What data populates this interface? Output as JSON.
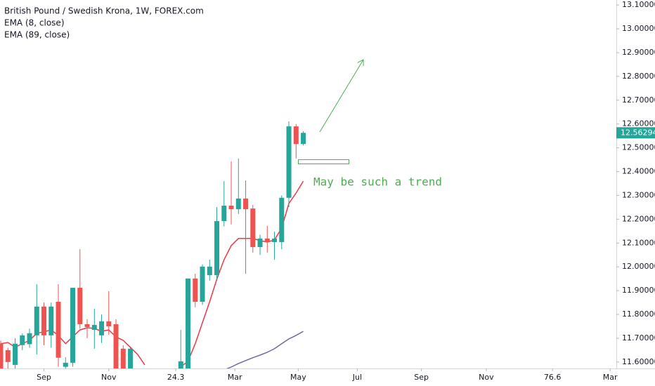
{
  "chart_data": {
    "type": "candlestick",
    "title": "British Pound / Swedish Krona, 1W, FOREX.com",
    "x": [
      0,
      1,
      2,
      3,
      4,
      5,
      6,
      7,
      8,
      9,
      10,
      11,
      12,
      13,
      14,
      15,
      16,
      17,
      18,
      25,
      26,
      27,
      28,
      29,
      30,
      31,
      32,
      33,
      34,
      35,
      36,
      37,
      38,
      39,
      40,
      41,
      42
    ],
    "open": [
      11.677,
      11.65,
      11.588,
      11.671,
      11.675,
      11.712,
      11.833,
      11.712,
      11.853,
      11.58,
      11.597,
      11.912,
      11.759,
      11.735,
      11.712,
      11.771,
      11.759,
      11.656,
      11.55,
      11.56,
      11.573,
      11.951,
      11.853,
      11.965,
      11.965,
      12.192,
      12.257,
      12.242,
      12.287,
      12.245,
      12.083,
      12.119,
      12.104,
      12.104,
      12.29,
      12.59,
      12.516
    ],
    "high": [
      11.69,
      11.66,
      11.7,
      11.72,
      11.74,
      11.927,
      11.85,
      11.85,
      11.927,
      11.62,
      11.912,
      12.074,
      11.78,
      11.824,
      11.8,
      11.898,
      11.78,
      11.67,
      11.66,
      11.735,
      11.95,
      11.971,
      12.01,
      12.03,
      12.251,
      12.36,
      12.443,
      12.455,
      12.363,
      12.26,
      12.135,
      12.172,
      12.148,
      12.3,
      12.611,
      12.6,
      12.57
    ],
    "low": [
      11.5,
      11.55,
      11.56,
      11.65,
      11.66,
      11.632,
      11.67,
      11.66,
      11.58,
      11.56,
      11.58,
      11.74,
      11.7,
      11.656,
      11.68,
      11.715,
      11.5,
      11.48,
      11.5,
      11.52,
      11.55,
      11.83,
      11.84,
      11.942,
      11.95,
      12.17,
      12.178,
      12.222,
      11.971,
      12.06,
      12.05,
      12.06,
      12.03,
      12.074,
      12.251,
      12.455,
      12.51
    ],
    "close": [
      11.54,
      11.6,
      11.677,
      11.712,
      11.721,
      11.833,
      11.712,
      11.833,
      11.618,
      11.597,
      11.912,
      11.759,
      11.747,
      11.756,
      11.771,
      11.75,
      11.55,
      11.52,
      11.656,
      11.603,
      11.951,
      11.853,
      12.001,
      12.001,
      12.192,
      12.257,
      12.242,
      12.287,
      12.242,
      12.083,
      12.119,
      12.104,
      12.119,
      12.29,
      12.59,
      12.516,
      12.56294
    ],
    "up_color": "#26a69a",
    "down_color": "#ef5350",
    "lines": [
      {
        "name": "EMA (8, close)",
        "color": "#f23645",
        "x": [
          0,
          1,
          2,
          3,
          4,
          5,
          6,
          7,
          8,
          9,
          10,
          11,
          12,
          13,
          14,
          15,
          16,
          17,
          18,
          19,
          20,
          21,
          22,
          23,
          24,
          25,
          26,
          27,
          28,
          29,
          30,
          31,
          32,
          33,
          34,
          35,
          36,
          37,
          38,
          39,
          40,
          41,
          42
        ],
        "values": [
          11.677,
          11.682,
          11.662,
          11.677,
          11.691,
          11.721,
          11.727,
          11.735,
          11.712,
          11.677,
          11.706,
          11.735,
          11.744,
          11.741,
          11.729,
          11.735,
          11.706,
          11.691,
          11.662,
          11.632,
          11.588,
          null,
          null,
          null,
          11.54,
          11.58,
          11.603,
          11.677,
          11.765,
          11.853,
          11.948,
          12.03,
          12.089,
          12.119,
          12.119,
          12.119,
          12.11,
          12.104,
          12.113,
          12.163,
          12.266,
          12.31,
          12.36
        ]
      },
      {
        "name": "EMA (89, close)",
        "color": "#6f6a9e",
        "x": [
          31,
          32,
          33,
          34,
          35,
          36,
          37,
          38,
          39,
          40,
          41,
          42
        ],
        "values": [
          11.567,
          11.579,
          11.594,
          11.606,
          11.618,
          11.629,
          11.641,
          11.656,
          11.677,
          11.697,
          11.712,
          11.729
        ]
      }
    ],
    "annotation": "May be such a trend",
    "xlim": [
      -0.1,
      85.46
    ],
    "ylim": [
      11.573,
      13.121
    ],
    "xticks": [
      {
        "value": 6,
        "label": "Sep"
      },
      {
        "value": 15,
        "label": "Nov"
      },
      24.3,
      {
        "value": 32.5,
        "label": "Mar"
      },
      {
        "value": 41.3,
        "label": "May"
      },
      {
        "value": 49.5,
        "label": "Jul"
      },
      {
        "value": 58.4,
        "label": "Sep"
      },
      {
        "value": 67.4,
        "label": "Nov"
      },
      76.6,
      {
        "value": 84.6,
        "label": "Mar"
      }
    ],
    "yticks": [
      {
        "value": 11.6,
        "label": "11.60000"
      },
      {
        "value": 11.7,
        "label": "11.70000"
      },
      {
        "value": 11.8,
        "label": "11.80000"
      },
      {
        "value": 11.9,
        "label": "11.90000"
      },
      {
        "value": 12.0,
        "label": "12.00000"
      },
      {
        "value": 12.1,
        "label": "12.10000"
      },
      {
        "value": 12.2,
        "label": "12.20000"
      },
      {
        "value": 12.3,
        "label": "12.30000"
      },
      {
        "value": 12.4,
        "label": "12.40000"
      },
      {
        "value": 12.5,
        "label": "12.50000"
      },
      {
        "value": 12.6,
        "label": "12.60000"
      },
      {
        "value": 12.7,
        "label": "12.70000"
      },
      {
        "value": 12.8,
        "label": "12.80000"
      },
      {
        "value": 12.9,
        "label": "12.90000"
      },
      {
        "value": 13.0,
        "label": "13.00000"
      },
      {
        "value": 13.1,
        "label": "13.10000"
      }
    ]
  }
}
